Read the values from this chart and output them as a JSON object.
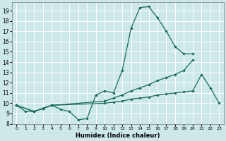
{
  "xlabel": "Humidex (Indice chaleur)",
  "xlim": [
    -0.5,
    23.5
  ],
  "ylim": [
    8.0,
    19.8
  ],
  "yticks": [
    8,
    9,
    10,
    11,
    12,
    13,
    14,
    15,
    16,
    17,
    18,
    19
  ],
  "xticks": [
    0,
    1,
    2,
    3,
    4,
    5,
    6,
    7,
    8,
    9,
    10,
    11,
    12,
    13,
    14,
    15,
    16,
    17,
    18,
    19,
    20,
    21,
    22,
    23
  ],
  "bg_color": "#cce8e8",
  "grid_color": "#ffffff",
  "line_color": "#1a6b5a",
  "line1_x": [
    0,
    1,
    2,
    3,
    4,
    5,
    6,
    7,
    8,
    9,
    10,
    11,
    12,
    13,
    14,
    15,
    16,
    17,
    18,
    19,
    20
  ],
  "line1_y": [
    9.8,
    9.2,
    9.2,
    9.5,
    9.8,
    9.4,
    9.2,
    8.4,
    8.5,
    10.8,
    11.2,
    11.0,
    13.2,
    17.3,
    19.3,
    19.4,
    18.3,
    17.0,
    15.5,
    14.8,
    14.8
  ],
  "line2_x": [
    0,
    2,
    3,
    4,
    10,
    11,
    12,
    13,
    14,
    15,
    16,
    17,
    18,
    19,
    20
  ],
  "line2_y": [
    9.8,
    9.2,
    9.5,
    9.8,
    10.2,
    10.5,
    10.8,
    11.2,
    11.5,
    11.8,
    12.2,
    12.5,
    12.8,
    13.2,
    14.2
  ],
  "line3_x": [
    0,
    2,
    3,
    4,
    10,
    11,
    12,
    13,
    14,
    15,
    16,
    17,
    18,
    19,
    20,
    21,
    22,
    23
  ],
  "line3_y": [
    9.8,
    9.2,
    9.5,
    9.8,
    10.0,
    10.1,
    10.2,
    10.4,
    10.5,
    10.6,
    10.8,
    10.9,
    11.0,
    11.1,
    11.2,
    12.8,
    11.5,
    10.0
  ]
}
